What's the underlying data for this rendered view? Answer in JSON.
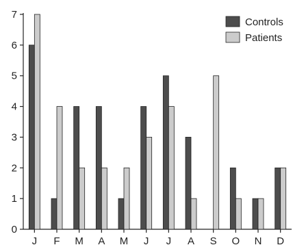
{
  "chart_data": {
    "type": "bar",
    "title": "",
    "xlabel": "",
    "ylabel": "",
    "categories": [
      "J",
      "F",
      "M",
      "A",
      "M",
      "J",
      "J",
      "A",
      "S",
      "O",
      "N",
      "D"
    ],
    "series": [
      {
        "name": "Controls",
        "color": "#4d4d4d",
        "values": [
          6,
          1,
          4,
          4,
          1,
          4,
          5,
          3,
          0,
          2,
          1,
          2
        ]
      },
      {
        "name": "Patients",
        "color": "#cccccc",
        "values": [
          7,
          4,
          2,
          2,
          2,
          3,
          4,
          1,
          5,
          1,
          1,
          2
        ]
      }
    ],
    "ylim": [
      0,
      7
    ],
    "yticks": [
      "0",
      "1",
      "2",
      "3",
      "4",
      "5",
      "6",
      "7"
    ],
    "grid": false,
    "legend_position": "top-right"
  }
}
